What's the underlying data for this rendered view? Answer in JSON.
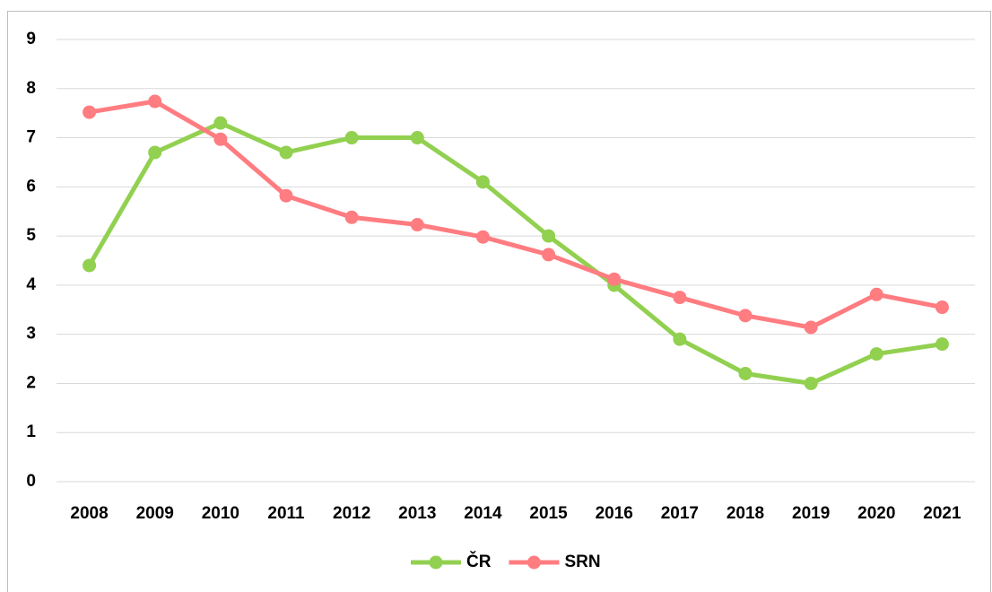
{
  "chart_data": {
    "type": "line",
    "categories": [
      "2008",
      "2009",
      "2010",
      "2011",
      "2012",
      "2013",
      "2014",
      "2015",
      "2016",
      "2017",
      "2018",
      "2019",
      "2020",
      "2021"
    ],
    "series": [
      {
        "name": "ČR",
        "color": "#92d050",
        "values": [
          4.4,
          6.7,
          7.3,
          6.7,
          7.0,
          7.0,
          6.1,
          5.0,
          4.0,
          2.9,
          2.2,
          2.0,
          2.6,
          2.8
        ]
      },
      {
        "name": "SRN",
        "color": "#ff7c80",
        "values": [
          7.52,
          7.74,
          6.97,
          5.82,
          5.38,
          5.23,
          4.98,
          4.62,
          4.12,
          3.75,
          3.38,
          3.14,
          3.81,
          3.55
        ]
      }
    ],
    "ylim": [
      0,
      9
    ],
    "yticks": [
      0,
      1,
      2,
      3,
      4,
      5,
      6,
      7,
      8,
      9
    ],
    "grid": true,
    "legend": "bottom"
  }
}
